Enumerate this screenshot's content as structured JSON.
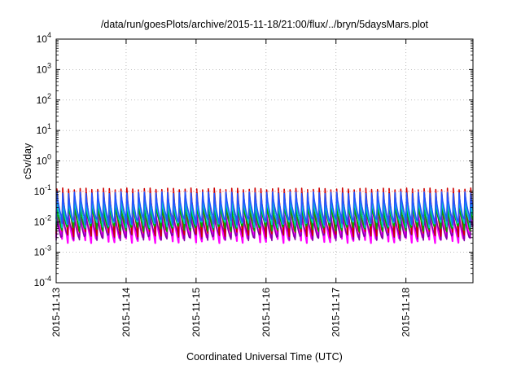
{
  "chart_data": {
    "type": "line",
    "title": "/data/run/goesPlots/archive/2015-11-18/21:00/flux/../bryn/5daysMars.plot",
    "xlabel": "Coordinated Universal Time (UTC)",
    "ylabel": "cSv/day",
    "y_scale": "log",
    "ylim": [
      0.0001,
      10000
    ],
    "y_ticks": [
      {
        "base": "10",
        "exp": "-4",
        "value": 0.0001
      },
      {
        "base": "10",
        "exp": "-3",
        "value": 0.001
      },
      {
        "base": "10",
        "exp": "-2",
        "value": 0.01
      },
      {
        "base": "10",
        "exp": "-1",
        "value": 0.1
      },
      {
        "base": "10",
        "exp": "0",
        "value": 1
      },
      {
        "base": "10",
        "exp": "1",
        "value": 10
      },
      {
        "base": "10",
        "exp": "2",
        "value": 100
      },
      {
        "base": "10",
        "exp": "3",
        "value": 1000
      },
      {
        "base": "10",
        "exp": "4",
        "value": 10000
      }
    ],
    "xlim": [
      "2015-11-13T00:00",
      "2015-11-18T23:00"
    ],
    "x_ticks": [
      "2015-11-13",
      "2015-11-14",
      "2015-11-15",
      "2015-11-16",
      "2015-11-17",
      "2015-11-18"
    ],
    "grid": true,
    "reference_line": 0.1,
    "pattern": {
      "peaks_per_day": 12,
      "count_per_day": 12,
      "start": "2015-11-13T00:00",
      "end": "2015-11-18T23:00"
    },
    "series": [
      {
        "color": "#cc0000",
        "peak": 0.12,
        "trough": 0.004
      },
      {
        "color": "#ff00ff",
        "peak": 0.02,
        "trough": 0.0025
      },
      {
        "color": "#2255ff",
        "peak": 0.09,
        "trough": 0.01
      },
      {
        "color": "#00cccc",
        "peak": 0.05,
        "trough": 0.008
      },
      {
        "color": "#00aa00",
        "peak": 0.03,
        "trough": 0.006
      },
      {
        "color": "#8800aa",
        "peak": 0.015,
        "trough": 0.003
      }
    ]
  }
}
